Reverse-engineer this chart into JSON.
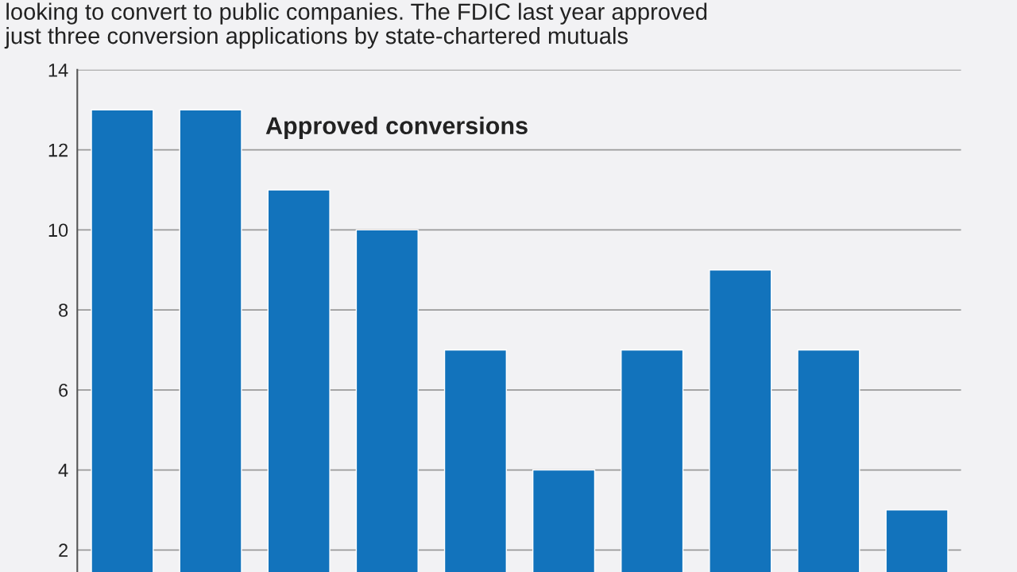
{
  "chart_data": {
    "type": "bar",
    "subtitle": "looking to convert to public companies. The FDIC last year approved\njust three conversion applications by state-chartered mutuals",
    "categories": [
      null,
      null,
      null,
      null,
      null,
      null,
      null,
      null,
      null,
      null
    ],
    "series": [
      {
        "name": "Approved conversions",
        "color": "#1273bc",
        "values": [
          13,
          13,
          11,
          10,
          7,
          4,
          7,
          9,
          7,
          3
        ]
      }
    ],
    "ylim": [
      1.45,
      14
    ],
    "yticks": [
      2,
      4,
      6,
      8,
      10,
      12,
      14
    ],
    "grid": "y",
    "tick_labels": "y"
  }
}
